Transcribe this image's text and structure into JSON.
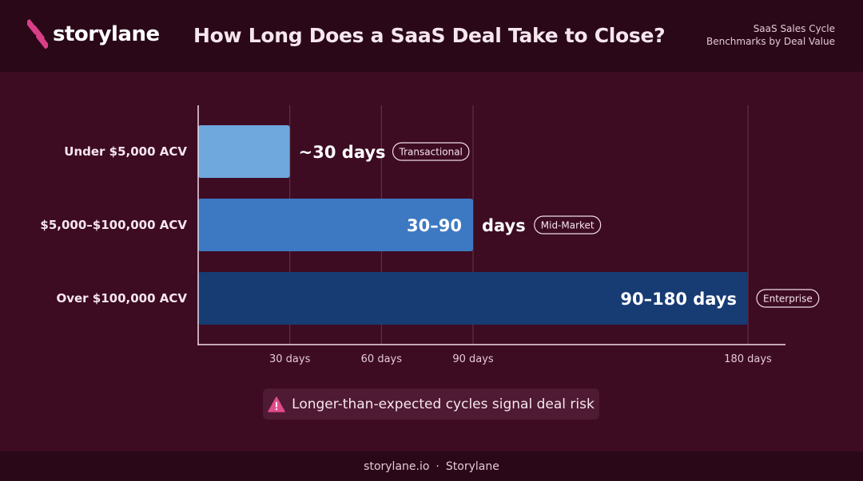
{
  "header": {
    "brand": "storylane",
    "title": "How Long Does a SaaS Deal Take to Close?",
    "subtitle_line1": "SaaS Sales Cycle",
    "subtitle_line2": "Benchmarks by Deal Value"
  },
  "colors": {
    "background": "#3d0b22",
    "header_bg": "#2a0818",
    "brand_pink": "#d83f87",
    "bar_transactional": "#6fa8dc",
    "bar_mid_market": "#3d79c2",
    "bar_enterprise": "#173b73"
  },
  "chart_data": {
    "type": "bar",
    "orientation": "horizontal",
    "categories": [
      "Under $5,000 ACV",
      "$5,000–$100,000 ACV",
      "Over $100,000 ACV"
    ],
    "values": [
      30,
      90,
      180
    ],
    "value_labels": [
      "~30 days",
      "30–90",
      "90–180 days"
    ],
    "value_label_suffix": [
      "",
      "days",
      ""
    ],
    "badges": [
      "Transactional",
      "Mid-Market",
      "Enterprise"
    ],
    "x_ticks": [
      30,
      60,
      90,
      180
    ],
    "x_tick_labels": [
      "30 days",
      "60 days",
      "90 days",
      "180 days"
    ],
    "xlim": [
      0,
      200
    ],
    "grid": true
  },
  "alert": {
    "icon": "warning-triangle-icon",
    "text": "Longer-than-expected cycles signal deal risk"
  },
  "footer": {
    "site": "storylane.io",
    "separator": "·",
    "brand": "Storylane"
  }
}
